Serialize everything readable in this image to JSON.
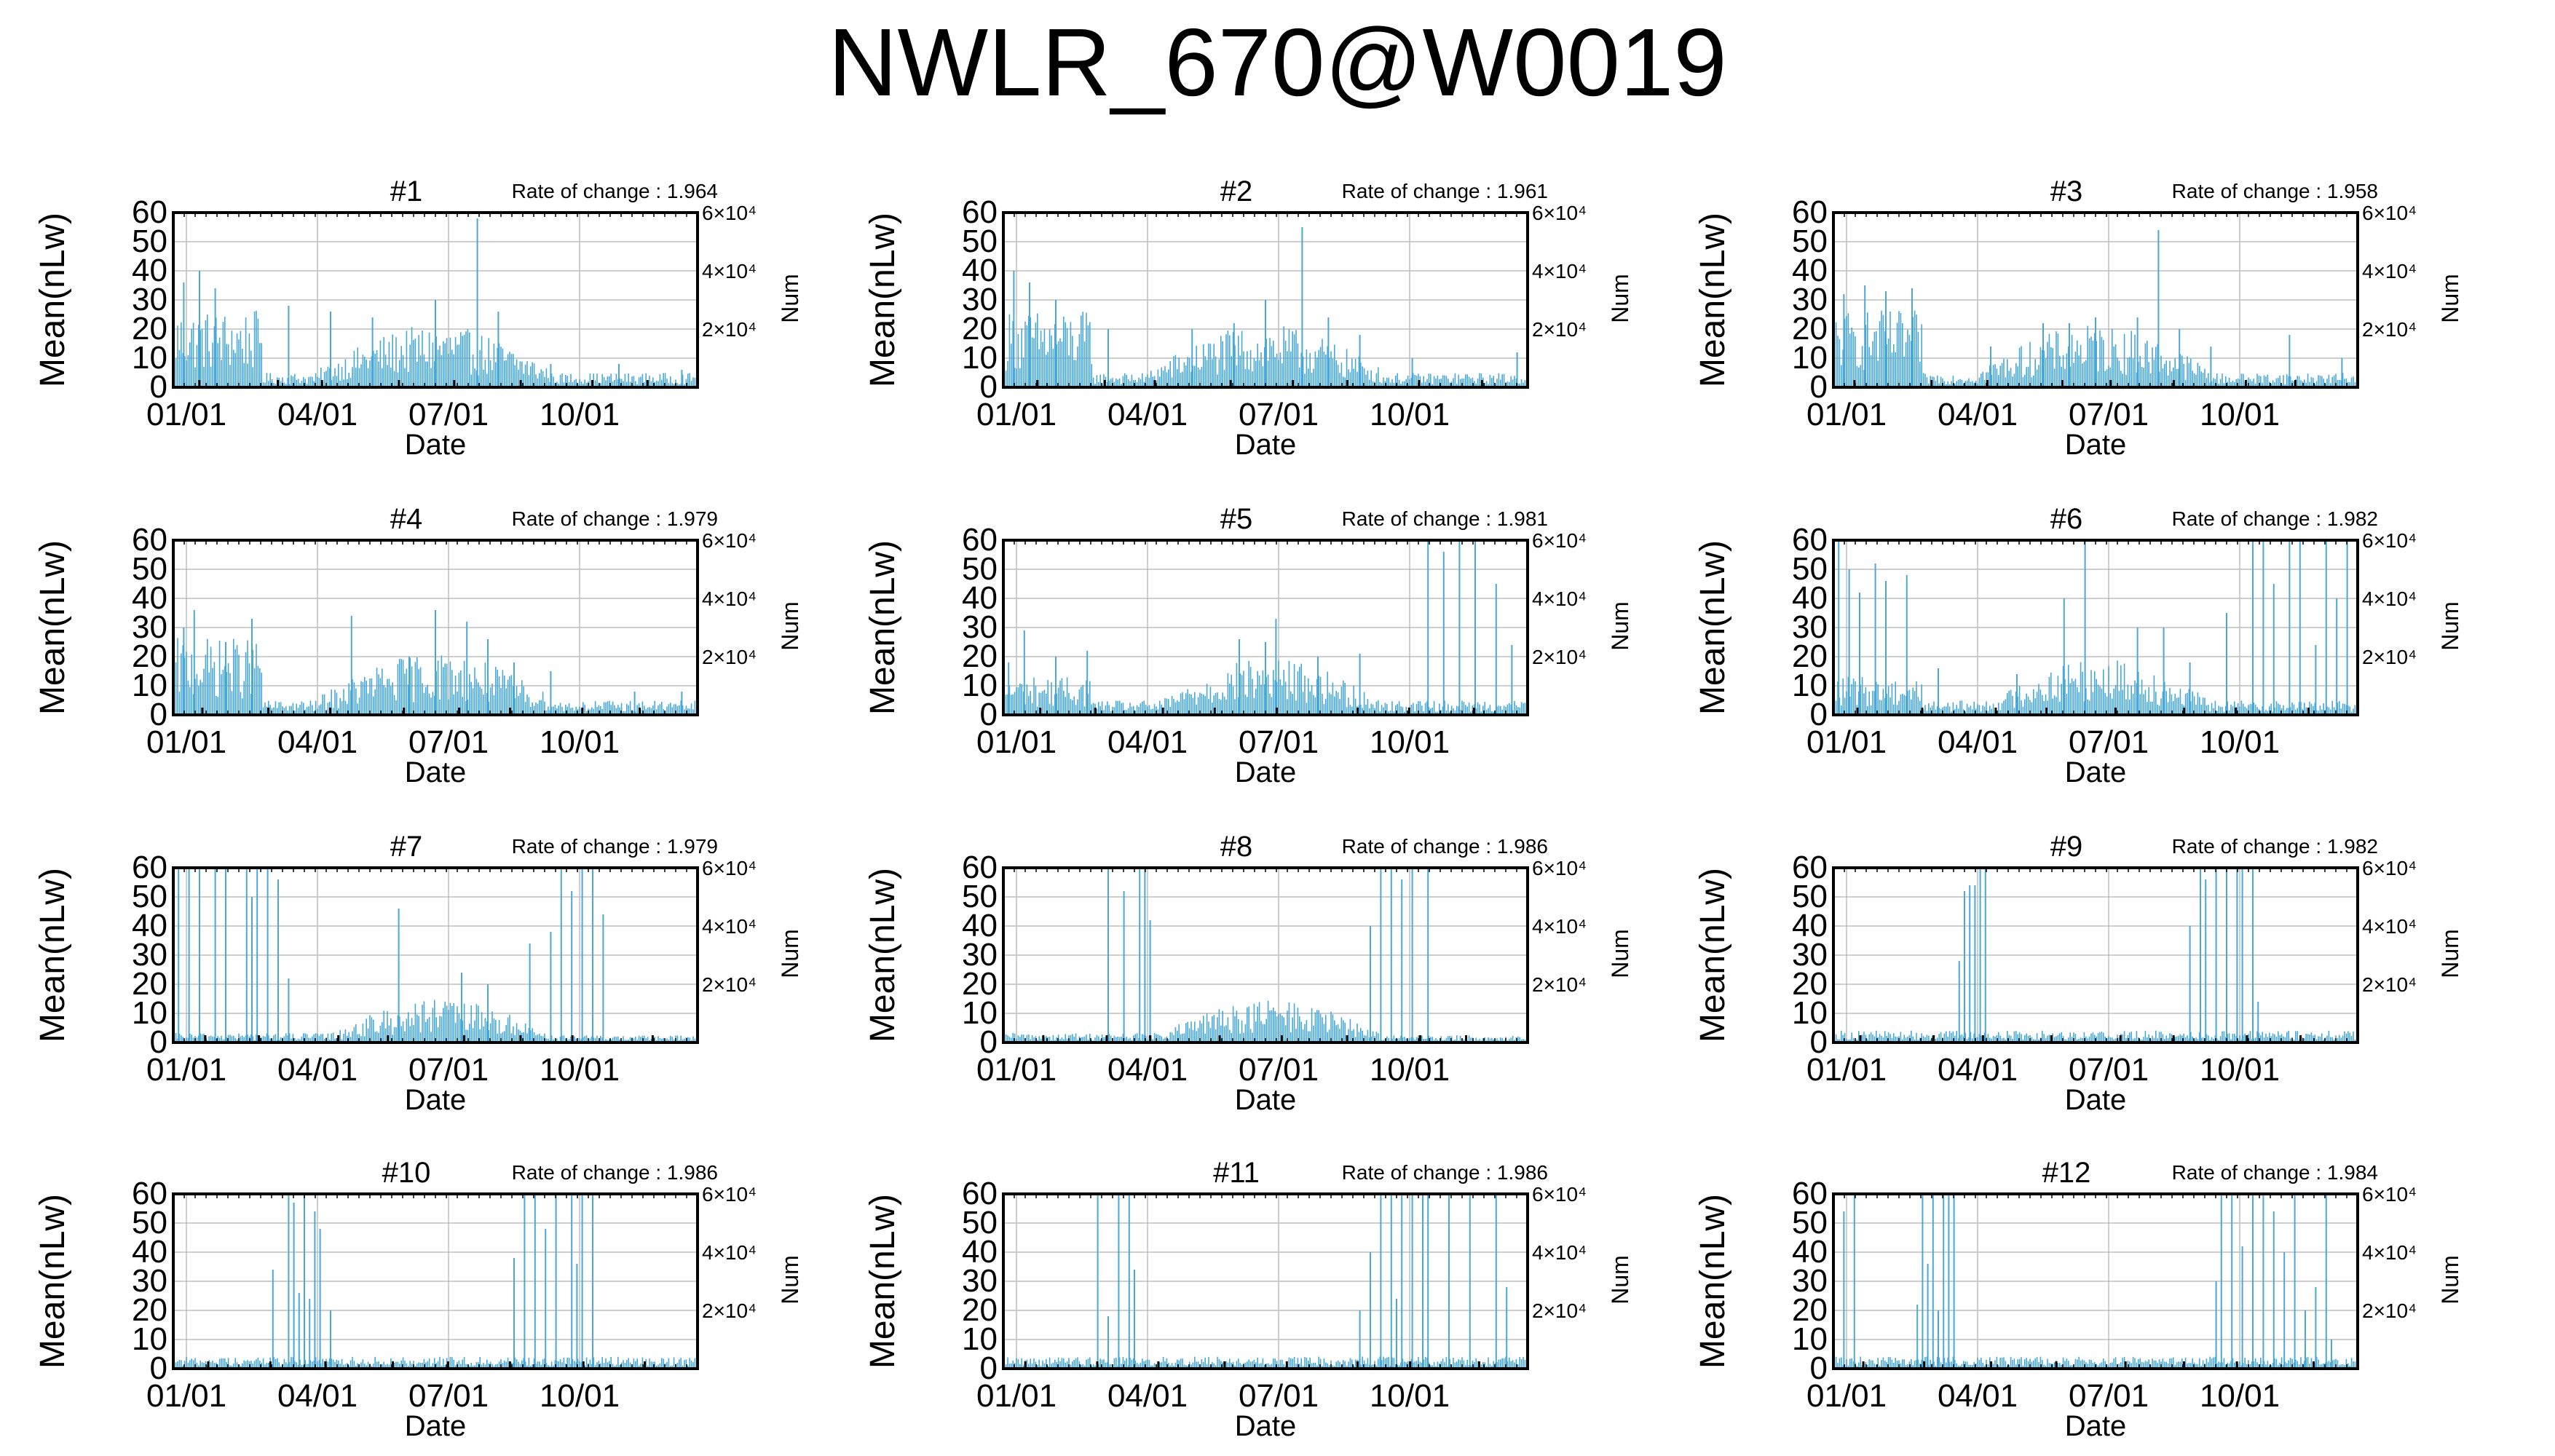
{
  "title": "NWLR_670@W0019",
  "x_tick_labels": [
    "01/01",
    "04/01",
    "07/01",
    "10/01"
  ],
  "y_tick_labels": [
    "0",
    "10",
    "20",
    "30",
    "40",
    "50",
    "60"
  ],
  "right_tick_labels": [
    "2×10⁴",
    "4×10⁴",
    "6×10⁴"
  ],
  "xlabel": "Date",
  "ylabel": "Mean(nLw)",
  "y2label": "Num",
  "colors": {
    "series": "#4aa8d8",
    "grid": "#bdbdbd",
    "axis": "#000000"
  },
  "chart_data": [
    {
      "type": "bar",
      "title": "#1",
      "rate_text": "Rate of change : 1.964",
      "ylim": [
        0,
        60
      ],
      "xlim": [
        "01/01",
        "12/31"
      ],
      "grid": true,
      "level": "high-spring",
      "spikes": [
        [
          0.02,
          36
        ],
        [
          0.05,
          40
        ],
        [
          0.08,
          34
        ],
        [
          0.22,
          28
        ],
        [
          0.3,
          26
        ],
        [
          0.38,
          24
        ],
        [
          0.5,
          30
        ],
        [
          0.58,
          58
        ],
        [
          0.62,
          26
        ],
        [
          0.72,
          8
        ],
        [
          0.85,
          8
        ],
        [
          0.97,
          6
        ]
      ]
    },
    {
      "type": "bar",
      "title": "#2",
      "rate_text": "Rate of change : 1.961",
      "ylim": [
        0,
        60
      ],
      "xlim": [
        "01/01",
        "12/31"
      ],
      "grid": true,
      "level": "high-spring",
      "spikes": [
        [
          0.02,
          40
        ],
        [
          0.05,
          36
        ],
        [
          0.1,
          30
        ],
        [
          0.2,
          20
        ],
        [
          0.36,
          20
        ],
        [
          0.44,
          22
        ],
        [
          0.5,
          30
        ],
        [
          0.57,
          55
        ],
        [
          0.62,
          24
        ],
        [
          0.68,
          18
        ],
        [
          0.78,
          10
        ],
        [
          0.98,
          12
        ]
      ]
    },
    {
      "type": "bar",
      "title": "#3",
      "rate_text": "Rate of change : 1.958",
      "ylim": [
        0,
        60
      ],
      "xlim": [
        "01/01",
        "12/31"
      ],
      "grid": true,
      "level": "high-spring",
      "spikes": [
        [
          0.02,
          32
        ],
        [
          0.06,
          35
        ],
        [
          0.1,
          33
        ],
        [
          0.15,
          34
        ],
        [
          0.3,
          14
        ],
        [
          0.4,
          22
        ],
        [
          0.45,
          22
        ],
        [
          0.5,
          24
        ],
        [
          0.58,
          24
        ],
        [
          0.62,
          54
        ],
        [
          0.66,
          20
        ],
        [
          0.72,
          14
        ],
        [
          0.87,
          18
        ],
        [
          0.97,
          10
        ]
      ]
    },
    {
      "type": "bar",
      "title": "#4",
      "rate_text": "Rate of change : 1.979",
      "ylim": [
        0,
        60
      ],
      "xlim": [
        "01/01",
        "12/31"
      ],
      "grid": true,
      "level": "high-spring",
      "spikes": [
        [
          0.02,
          30
        ],
        [
          0.04,
          36
        ],
        [
          0.1,
          25
        ],
        [
          0.15,
          33
        ],
        [
          0.34,
          34
        ],
        [
          0.45,
          20
        ],
        [
          0.5,
          36
        ],
        [
          0.56,
          32
        ],
        [
          0.6,
          26
        ],
        [
          0.65,
          18
        ],
        [
          0.72,
          15
        ],
        [
          0.88,
          8
        ],
        [
          0.97,
          8
        ]
      ]
    },
    {
      "type": "bar",
      "title": "#5",
      "rate_text": "Rate of change : 1.981",
      "ylim": [
        0,
        60
      ],
      "xlim": [
        "01/01",
        "12/31"
      ],
      "grid": true,
      "level": "mid",
      "spikes": [
        [
          0.01,
          18
        ],
        [
          0.04,
          29
        ],
        [
          0.1,
          20
        ],
        [
          0.16,
          22
        ],
        [
          0.45,
          26
        ],
        [
          0.5,
          25
        ],
        [
          0.52,
          33
        ],
        [
          0.6,
          20
        ],
        [
          0.68,
          21
        ],
        [
          0.81,
          60
        ],
        [
          0.84,
          56
        ],
        [
          0.87,
          60
        ],
        [
          0.9,
          60
        ],
        [
          0.94,
          45
        ],
        [
          0.97,
          24
        ]
      ]
    },
    {
      "type": "bar",
      "title": "#6",
      "rate_text": "Rate of change : 1.982",
      "ylim": [
        0,
        60
      ],
      "xlim": [
        "01/01",
        "12/31"
      ],
      "grid": true,
      "level": "mid",
      "spikes": [
        [
          0.01,
          60
        ],
        [
          0.03,
          50
        ],
        [
          0.05,
          42
        ],
        [
          0.08,
          52
        ],
        [
          0.1,
          46
        ],
        [
          0.14,
          48
        ],
        [
          0.2,
          16
        ],
        [
          0.35,
          14
        ],
        [
          0.44,
          40
        ],
        [
          0.48,
          60
        ],
        [
          0.58,
          30
        ],
        [
          0.63,
          30
        ],
        [
          0.68,
          18
        ],
        [
          0.75,
          35
        ],
        [
          0.8,
          60
        ],
        [
          0.82,
          60
        ],
        [
          0.84,
          45
        ],
        [
          0.87,
          60
        ],
        [
          0.89,
          60
        ],
        [
          0.92,
          24
        ],
        [
          0.94,
          60
        ],
        [
          0.96,
          40
        ],
        [
          0.98,
          60
        ]
      ]
    },
    {
      "type": "bar",
      "title": "#7",
      "rate_text": "Rate of change : 1.979",
      "ylim": [
        0,
        60
      ],
      "xlim": [
        "01/01",
        "12/31"
      ],
      "grid": true,
      "level": "low-summer",
      "spikes": [
        [
          0.01,
          60
        ],
        [
          0.03,
          60
        ],
        [
          0.05,
          60
        ],
        [
          0.08,
          60
        ],
        [
          0.1,
          60
        ],
        [
          0.14,
          60
        ],
        [
          0.15,
          50
        ],
        [
          0.16,
          60
        ],
        [
          0.18,
          60
        ],
        [
          0.2,
          56
        ],
        [
          0.22,
          22
        ],
        [
          0.43,
          46
        ],
        [
          0.55,
          24
        ],
        [
          0.6,
          20
        ],
        [
          0.68,
          34
        ],
        [
          0.72,
          38
        ],
        [
          0.74,
          60
        ],
        [
          0.76,
          52
        ],
        [
          0.78,
          60
        ],
        [
          0.8,
          60
        ],
        [
          0.82,
          44
        ]
      ]
    },
    {
      "type": "bar",
      "title": "#8",
      "rate_text": "Rate of change : 1.986",
      "ylim": [
        0,
        60
      ],
      "xlim": [
        "01/01",
        "12/31"
      ],
      "grid": true,
      "level": "low-summer",
      "spikes": [
        [
          0.2,
          60
        ],
        [
          0.23,
          52
        ],
        [
          0.26,
          60
        ],
        [
          0.27,
          60
        ],
        [
          0.28,
          42
        ],
        [
          0.7,
          40
        ],
        [
          0.72,
          60
        ],
        [
          0.74,
          60
        ],
        [
          0.76,
          56
        ],
        [
          0.78,
          60
        ],
        [
          0.81,
          60
        ]
      ]
    },
    {
      "type": "bar",
      "title": "#9",
      "rate_text": "Rate of change : 1.982",
      "ylim": [
        0,
        60
      ],
      "xlim": [
        "01/01",
        "12/31"
      ],
      "grid": true,
      "level": "very-low",
      "spikes": [
        [
          0.24,
          28
        ],
        [
          0.25,
          52
        ],
        [
          0.26,
          54
        ],
        [
          0.27,
          54
        ],
        [
          0.28,
          60
        ],
        [
          0.29,
          60
        ],
        [
          0.68,
          40
        ],
        [
          0.7,
          60
        ],
        [
          0.71,
          56
        ],
        [
          0.73,
          60
        ],
        [
          0.75,
          60
        ],
        [
          0.77,
          60
        ],
        [
          0.78,
          60
        ],
        [
          0.8,
          60
        ],
        [
          0.81,
          14
        ]
      ]
    },
    {
      "type": "bar",
      "title": "#10",
      "rate_text": "Rate of change : 1.986",
      "ylim": [
        0,
        60
      ],
      "xlim": [
        "01/01",
        "12/31"
      ],
      "grid": true,
      "level": "very-low",
      "spikes": [
        [
          0.19,
          34
        ],
        [
          0.22,
          60
        ],
        [
          0.23,
          57
        ],
        [
          0.24,
          26
        ],
        [
          0.25,
          60
        ],
        [
          0.26,
          24
        ],
        [
          0.27,
          54
        ],
        [
          0.28,
          48
        ],
        [
          0.3,
          20
        ],
        [
          0.65,
          38
        ],
        [
          0.67,
          60
        ],
        [
          0.69,
          60
        ],
        [
          0.71,
          48
        ],
        [
          0.73,
          60
        ],
        [
          0.76,
          60
        ],
        [
          0.77,
          36
        ],
        [
          0.78,
          60
        ],
        [
          0.8,
          60
        ]
      ]
    },
    {
      "type": "bar",
      "title": "#11",
      "rate_text": "Rate of change : 1.986",
      "ylim": [
        0,
        60
      ],
      "xlim": [
        "01/01",
        "12/31"
      ],
      "grid": true,
      "level": "very-low",
      "spikes": [
        [
          0.18,
          60
        ],
        [
          0.2,
          18
        ],
        [
          0.22,
          60
        ],
        [
          0.24,
          60
        ],
        [
          0.25,
          34
        ],
        [
          0.68,
          20
        ],
        [
          0.7,
          40
        ],
        [
          0.72,
          60
        ],
        [
          0.74,
          60
        ],
        [
          0.75,
          24
        ],
        [
          0.76,
          60
        ],
        [
          0.78,
          60
        ],
        [
          0.8,
          60
        ],
        [
          0.81,
          60
        ],
        [
          0.85,
          60
        ],
        [
          0.89,
          60
        ],
        [
          0.94,
          60
        ],
        [
          0.96,
          28
        ]
      ]
    },
    {
      "type": "bar",
      "title": "#12",
      "rate_text": "Rate of change : 1.984",
      "ylim": [
        0,
        60
      ],
      "xlim": [
        "01/01",
        "12/31"
      ],
      "grid": true,
      "level": "very-low",
      "spikes": [
        [
          0.02,
          54
        ],
        [
          0.04,
          60
        ],
        [
          0.16,
          22
        ],
        [
          0.17,
          60
        ],
        [
          0.18,
          36
        ],
        [
          0.19,
          60
        ],
        [
          0.2,
          20
        ],
        [
          0.21,
          60
        ],
        [
          0.22,
          60
        ],
        [
          0.23,
          60
        ],
        [
          0.73,
          30
        ],
        [
          0.74,
          60
        ],
        [
          0.76,
          60
        ],
        [
          0.78,
          42
        ],
        [
          0.8,
          60
        ],
        [
          0.82,
          60
        ],
        [
          0.84,
          54
        ],
        [
          0.86,
          40
        ],
        [
          0.88,
          60
        ],
        [
          0.9,
          20
        ],
        [
          0.92,
          28
        ],
        [
          0.94,
          60
        ],
        [
          0.95,
          10
        ]
      ]
    }
  ]
}
